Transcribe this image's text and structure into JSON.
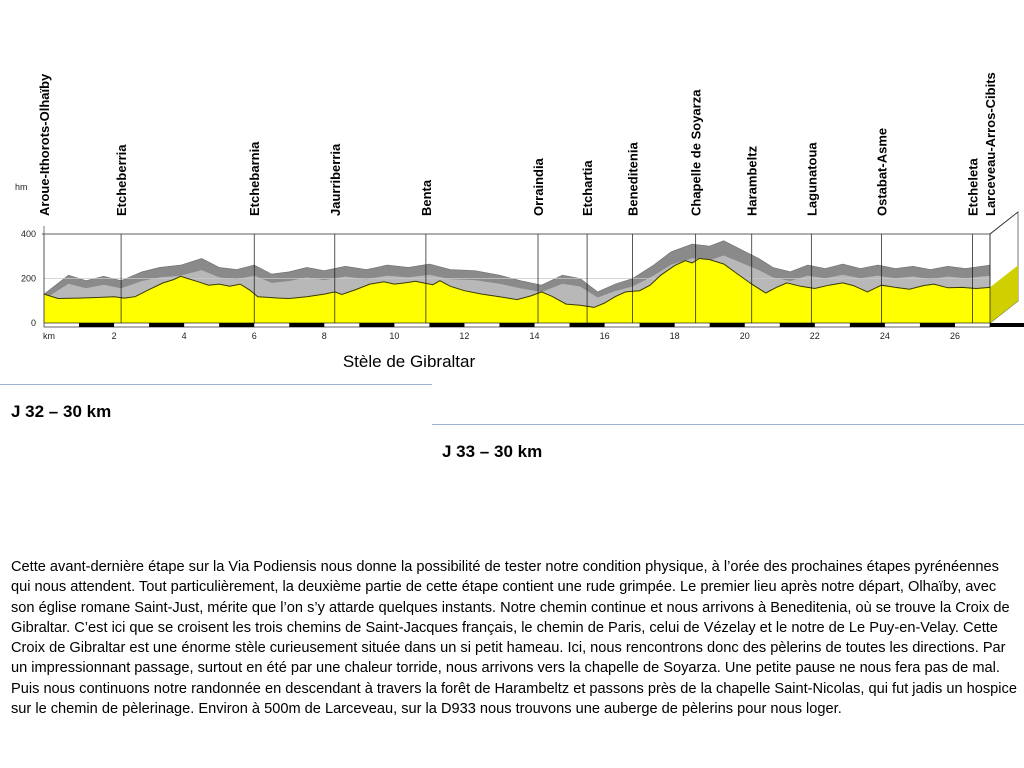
{
  "chart_data": {
    "type": "area",
    "ylabel": "hm",
    "xlabel": "km",
    "xlim": [
      0,
      27
    ],
    "ylim": [
      0,
      400
    ],
    "yticks": [
      0,
      200,
      400
    ],
    "xticks": [
      2,
      4,
      6,
      8,
      10,
      12,
      14,
      16,
      18,
      20,
      22,
      24,
      26
    ],
    "places": [
      {
        "name": "Aroue-Ithorots-Olhaïby",
        "km": 0
      },
      {
        "name": "Etcheberria",
        "km": 2.2
      },
      {
        "name": "Etchebarnia",
        "km": 6
      },
      {
        "name": "Jaurriberria",
        "km": 8.3
      },
      {
        "name": "Benta",
        "km": 10.9
      },
      {
        "name": "Orraindia",
        "km": 14.1
      },
      {
        "name": "Etchartia",
        "km": 15.5
      },
      {
        "name": "Beneditenia",
        "km": 16.8
      },
      {
        "name": "Chapelle de Soyarza",
        "km": 18.6
      },
      {
        "name": "Harambeltz",
        "km": 20.2
      },
      {
        "name": "Lagunatoua",
        "km": 21.9
      },
      {
        "name": "Ostabat-Asme",
        "km": 23.9
      },
      {
        "name": "Etcheleta",
        "km": 26.5
      },
      {
        "name": "Larceveau-Arros-Cibits",
        "km": 27
      }
    ],
    "series": [
      {
        "values": [
          [
            0,
            130
          ],
          [
            0.4,
            110
          ],
          [
            1,
            112
          ],
          [
            1.6,
            115
          ],
          [
            2,
            118
          ],
          [
            2.3,
            112
          ],
          [
            2.6,
            118
          ],
          [
            3,
            150
          ],
          [
            3.4,
            180
          ],
          [
            3.7,
            195
          ],
          [
            3.9,
            210
          ],
          [
            4.1,
            200
          ],
          [
            4.4,
            185
          ],
          [
            4.7,
            170
          ],
          [
            5,
            175
          ],
          [
            5.3,
            165
          ],
          [
            5.6,
            175
          ],
          [
            5.9,
            145
          ],
          [
            6.1,
            118
          ],
          [
            6.4,
            115
          ],
          [
            6.7,
            112
          ],
          [
            7,
            110
          ],
          [
            7.5,
            118
          ],
          [
            8,
            130
          ],
          [
            8.3,
            140
          ],
          [
            8.5,
            128
          ],
          [
            8.9,
            150
          ],
          [
            9.3,
            175
          ],
          [
            9.7,
            185
          ],
          [
            10,
            175
          ],
          [
            10.3,
            180
          ],
          [
            10.6,
            188
          ],
          [
            10.9,
            178
          ],
          [
            11.1,
            172
          ],
          [
            11.3,
            190
          ],
          [
            11.6,
            165
          ],
          [
            12,
            145
          ],
          [
            12.5,
            130
          ],
          [
            13,
            118
          ],
          [
            13.5,
            105
          ],
          [
            13.9,
            122
          ],
          [
            14.2,
            140
          ],
          [
            14.5,
            120
          ],
          [
            14.9,
            85
          ],
          [
            15.3,
            80
          ],
          [
            15.7,
            70
          ],
          [
            16,
            90
          ],
          [
            16.3,
            118
          ],
          [
            16.6,
            140
          ],
          [
            17,
            145
          ],
          [
            17.3,
            170
          ],
          [
            17.6,
            215
          ],
          [
            18,
            258
          ],
          [
            18.3,
            280
          ],
          [
            18.5,
            270
          ],
          [
            18.7,
            290
          ],
          [
            19,
            285
          ],
          [
            19.4,
            265
          ],
          [
            19.8,
            220
          ],
          [
            20.2,
            175
          ],
          [
            20.6,
            135
          ],
          [
            20.9,
            160
          ],
          [
            21.2,
            180
          ],
          [
            21.6,
            165
          ],
          [
            22,
            155
          ],
          [
            22.4,
            170
          ],
          [
            22.8,
            180
          ],
          [
            23.1,
            168
          ],
          [
            23.5,
            140
          ],
          [
            23.9,
            170
          ],
          [
            24.3,
            160
          ],
          [
            24.7,
            152
          ],
          [
            25.1,
            168
          ],
          [
            25.4,
            175
          ],
          [
            25.8,
            158
          ],
          [
            26.2,
            160
          ],
          [
            26.6,
            155
          ],
          [
            27,
            160
          ]
        ]
      }
    ]
  },
  "caption": "Stèle de Gibraltar",
  "stage_left": "J 32 – 30 km",
  "stage_right": "J 33 – 30 km",
  "description": "Cette avant-dernière étape sur la Via Podiensis nous donne la possibilité de tester notre condition physique, à l’orée des prochaines étapes pyrénéennes qui nous attendent. Tout particulièrement, la deuxième partie de cette étape contient une rude grimpée. Le premier lieu après notre départ, Olhaïby, avec son église romane Saint-Just, mérite que l’on s’y attarde quelques instants. Notre chemin continue et nous arrivons à Beneditenia, où se trouve la Croix de Gibraltar. C’est ici que se croisent les trois chemins de Saint-Jacques français, le chemin de Paris, celui de Vézelay et le notre de Le Puy-en-Velay. Cette Croix de Gibraltar est une énorme stèle curieusement située dans un si petit hameau. Ici, nous rencontrons donc des pèlerins de toutes les directions. Par un impressionnant passage, surtout en été par une chaleur torride, nous arrivons vers la chapelle de Soyarza. Une petite pause ne nous fera pas de mal. Puis nous continuons notre randonnée en descendant à travers la forêt de Harambeltz et passons près de la chapelle Saint-Nicolas, qui fut jadis un hospice sur le chemin de pèlerinage. Environ à 500m de Larceveau, sur la D933 nous trouvons une auberge de pèlerins pour nous loger."
}
